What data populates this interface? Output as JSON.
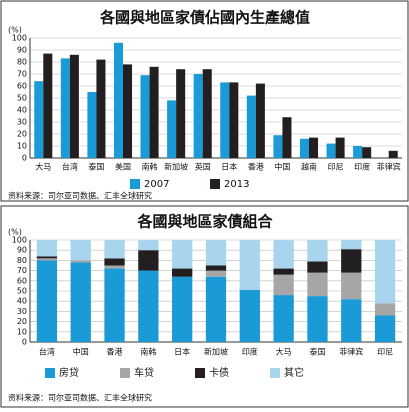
{
  "chart_data": [
    {
      "type": "bar",
      "title": "各國與地區家債佔國內生產總值",
      "y_label": "(%)",
      "categories": [
        "大马",
        "台湾",
        "泰国",
        "美国",
        "南韩",
        "新加坡",
        "英国",
        "日本",
        "香港",
        "中国",
        "越南",
        "印尼",
        "印度",
        "菲律宾"
      ],
      "series": [
        {
          "name": "2007",
          "color": "#1a9ad6",
          "values": [
            64,
            83,
            55,
            96,
            69,
            48,
            70,
            63,
            52,
            19,
            16,
            12,
            10,
            null
          ]
        },
        {
          "name": "2013",
          "color": "#231f20",
          "values": [
            87,
            86,
            82,
            78,
            76,
            74,
            74,
            63,
            62,
            34,
            17,
            17,
            9,
            6
          ]
        }
      ],
      "ylim": [
        0,
        100
      ],
      "yticks": [
        0,
        10,
        20,
        30,
        40,
        50,
        60,
        70,
        80,
        90,
        100
      ],
      "grid": true,
      "note": "资料来源：司尔亚司数据、汇丰全球研究"
    },
    {
      "type": "bar",
      "stacked": true,
      "title": "各國與地區家債組合",
      "y_label": "(%)",
      "categories": [
        "台湾",
        "中国",
        "香港",
        "南韩",
        "日本",
        "新加坡",
        "印度",
        "大马",
        "泰国",
        "菲律宾",
        "印尼"
      ],
      "series": [
        {
          "name": "房贷",
          "color": "#1a9ad6",
          "values": [
            80,
            78,
            72,
            70,
            64,
            64,
            51,
            46,
            45,
            42,
            26
          ]
        },
        {
          "name": "车贷",
          "color": "#a6a6a6",
          "values": [
            2,
            2,
            3,
            0,
            0,
            6,
            0,
            20,
            23,
            26,
            12
          ]
        },
        {
          "name": "卡债",
          "color": "#231f20",
          "values": [
            2,
            0,
            7,
            20,
            8,
            5,
            0,
            6,
            11,
            23,
            0
          ]
        },
        {
          "name": "其它",
          "color": "#a8d4ee",
          "values": [
            16,
            20,
            18,
            10,
            28,
            25,
            49,
            28,
            21,
            9,
            62
          ]
        }
      ],
      "ylim": [
        0,
        100
      ],
      "yticks": [
        0,
        10,
        20,
        30,
        40,
        50,
        60,
        70,
        80,
        90,
        100
      ],
      "grid": true,
      "note": "资料来源：司尔亚司数据、汇丰全球研究"
    }
  ]
}
